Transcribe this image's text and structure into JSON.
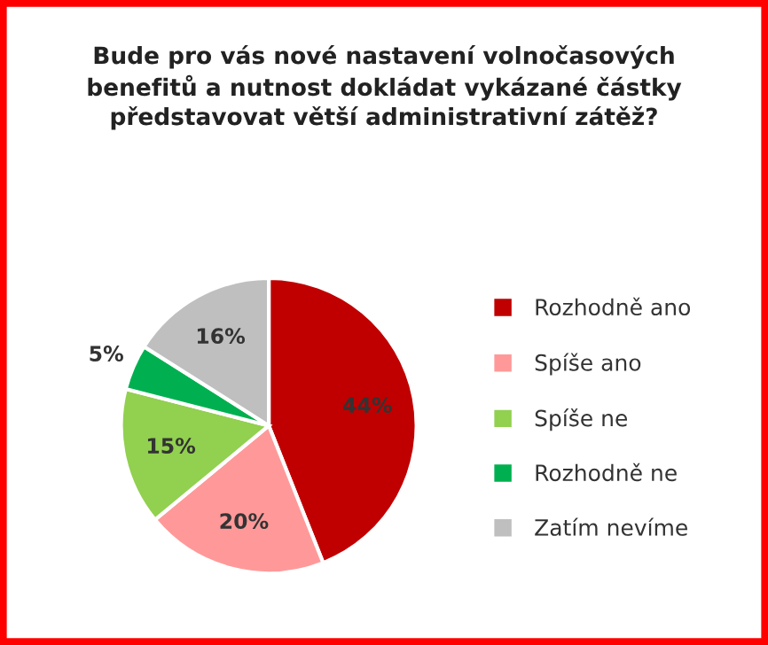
{
  "chart_data": {
    "type": "pie",
    "title": "Bude pro vás nové nastavení volnočasových\nbenefitů a nutnost dokládat vykázané částky\npředstavovat větší administrativní zátěž?",
    "categories": [
      "Rozhodně ano",
      "Spíše ano",
      "Spíše ne",
      "Rozhodně ne",
      "Zatím nevíme"
    ],
    "values": [
      44,
      20,
      15,
      5,
      16
    ],
    "value_labels": [
      "44%",
      "20%",
      "15%",
      "5%",
      "16%"
    ],
    "colors": [
      "#c00000",
      "#ff9999",
      "#92d050",
      "#00b050",
      "#bfbfbf"
    ],
    "legend": "right"
  }
}
